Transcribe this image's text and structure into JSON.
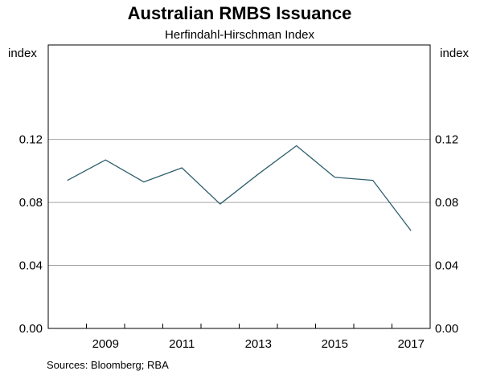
{
  "chart_data": {
    "type": "line",
    "title": "Australian RMBS Issuance",
    "subtitle": "Herfindahl-Hirschman Index",
    "left_unit": "index",
    "right_unit": "index",
    "ylim": [
      0,
      0.12
    ],
    "yticks": [
      "0.00",
      "0.04",
      "0.08",
      "0.12"
    ],
    "xlim": [
      2007.5,
      2017.5
    ],
    "xticks": [
      "2009",
      "2011",
      "2013",
      "2015",
      "2017"
    ],
    "grid": true,
    "series": [
      {
        "x": [
          2008,
          2009,
          2010,
          2011,
          2012,
          2013,
          2014,
          2015,
          2016,
          2017
        ],
        "values": [
          0.094,
          0.107,
          0.093,
          0.102,
          0.079,
          0.098,
          0.116,
          0.096,
          0.094,
          0.062
        ],
        "color": "#2f5f6f"
      }
    ],
    "source": "Sources:   Bloomberg; RBA"
  }
}
